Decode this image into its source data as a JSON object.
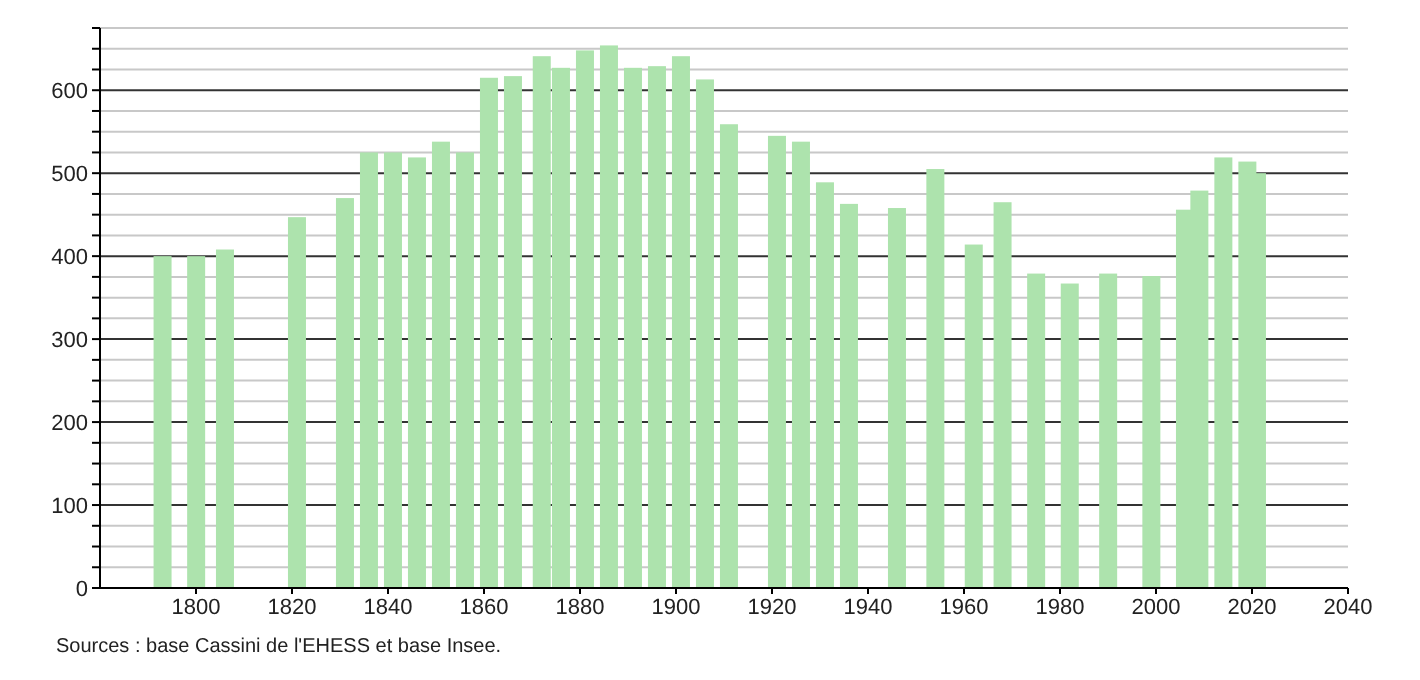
{
  "chart_data": {
    "type": "bar",
    "x": [
      1793,
      1800,
      1806,
      1821,
      1831,
      1836,
      1841,
      1846,
      1851,
      1856,
      1861,
      1866,
      1872,
      1876,
      1881,
      1886,
      1891,
      1896,
      1901,
      1906,
      1911,
      1921,
      1926,
      1931,
      1936,
      1946,
      1954,
      1962,
      1968,
      1975,
      1982,
      1990,
      1999,
      2006,
      2009,
      2014,
      2019,
      2021
    ],
    "values": [
      400,
      400,
      408,
      447,
      470,
      525,
      525,
      519,
      538,
      525,
      615,
      617,
      641,
      627,
      648,
      654,
      627,
      629,
      641,
      613,
      559,
      545,
      538,
      489,
      463,
      458,
      505,
      414,
      465,
      379,
      367,
      379,
      376,
      456,
      479,
      519,
      514,
      500
    ],
    "color": "#ade3ad",
    "xlim": [
      1780,
      2040
    ],
    "xticks": [
      1800,
      1820,
      1840,
      1860,
      1880,
      1900,
      1920,
      1940,
      1960,
      1980,
      2000,
      2020,
      2040
    ],
    "ylim": [
      0,
      675
    ],
    "yticks": [
      0,
      {
        "value": 25,
        "label": null
      },
      {
        "value": 50,
        "label": null
      },
      {
        "value": 75,
        "label": null
      },
      100,
      {
        "value": 125,
        "label": null
      },
      {
        "value": 150,
        "label": null
      },
      {
        "value": 175,
        "label": null
      },
      200,
      {
        "value": 225,
        "label": null
      },
      {
        "value": 250,
        "label": null
      },
      {
        "value": 275,
        "label": null
      },
      300,
      {
        "value": 325,
        "label": null
      },
      {
        "value": 350,
        "label": null
      },
      {
        "value": 375,
        "label": null
      },
      400,
      {
        "value": 425,
        "label": null
      },
      {
        "value": 450,
        "label": null
      },
      {
        "value": 475,
        "label": null
      },
      500,
      {
        "value": 525,
        "label": null
      },
      {
        "value": 550,
        "label": null
      },
      {
        "value": 575,
        "label": null
      },
      600,
      {
        "value": 625,
        "label": null
      },
      {
        "value": 650,
        "label": null
      },
      {
        "value": 675,
        "label": null
      }
    ],
    "grid": "y",
    "annotations": [
      "Sources : base Cassini de l'EHESS et base Insee."
    ]
  }
}
